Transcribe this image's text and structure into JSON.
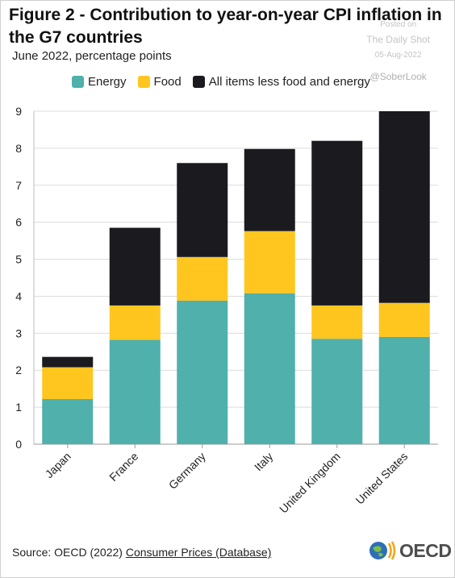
{
  "title": "Figure 2 - Contribution to year-on-year CPI inflation in the G7 countries",
  "subtitle": "June 2022, percentage points",
  "watermark": {
    "line1": "Posted on",
    "line2": "The Daily Shot",
    "line3": "05-Aug-2022",
    "handle": "@SoberLook"
  },
  "source": {
    "prefix": "Source: OECD (2022) ",
    "link": "Consumer Prices (Database)"
  },
  "logo_text": "OECD",
  "colors": {
    "energy": "#4fb0ac",
    "food": "#ffc61f",
    "core": "#1b1a1f",
    "grid": "#dcdcdc"
  },
  "chart_data": {
    "type": "bar",
    "stacked": true,
    "categories": [
      "Japan",
      "France",
      "Germany",
      "Italy",
      "United Kingdom",
      "United States"
    ],
    "series": [
      {
        "name": "Energy",
        "color": "#4fb0ac",
        "values": [
          1.22,
          2.82,
          3.88,
          4.08,
          2.85,
          2.9
        ]
      },
      {
        "name": "Food",
        "color": "#ffc61f",
        "values": [
          0.86,
          0.93,
          1.18,
          1.68,
          0.9,
          0.92
        ]
      },
      {
        "name": "All items less food and energy",
        "color": "#1b1a1f",
        "values": [
          0.28,
          2.1,
          2.54,
          2.22,
          4.45,
          5.18
        ]
      }
    ],
    "ylim": [
      0,
      9
    ],
    "yticks": [
      "0",
      "1",
      "2",
      "3",
      "4",
      "5",
      "6",
      "7",
      "8",
      "9"
    ],
    "grid": true,
    "legend_position": "top"
  }
}
